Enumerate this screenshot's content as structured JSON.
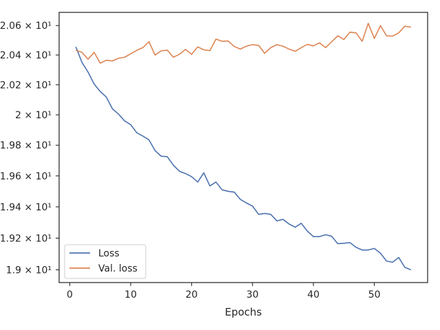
{
  "colors": {
    "loss": "#4c72b0",
    "val_loss": "#dd8452",
    "axes": "#262626",
    "background": "#ffffff"
  },
  "chart_data": {
    "type": "line",
    "title": "",
    "xlabel": "Epochs",
    "ylabel": "",
    "xlim": [
      -1.75,
      58.75
    ],
    "ylim": [
      18.92,
      20.69
    ],
    "yscale": "log",
    "grid": false,
    "legend_position": "lower-left",
    "x_ticks": [
      0,
      10,
      20,
      30,
      40,
      50
    ],
    "x_tick_labels": [
      "0",
      "10",
      "20",
      "30",
      "40",
      "50"
    ],
    "y_ticks": [
      19.0,
      19.2,
      19.4,
      19.6,
      19.8,
      20.0,
      20.2,
      20.4,
      20.6
    ],
    "y_tick_labels": [
      "1.9 × 10¹",
      "1.92 × 10¹",
      "1.94 × 10¹",
      "1.96 × 10¹",
      "1.98 × 10¹",
      "2 × 10¹",
      "2.02 × 10¹",
      "2.04 × 10¹",
      "2.06 × 10¹"
    ],
    "x": [
      1,
      2,
      3,
      4,
      5,
      6,
      7,
      8,
      9,
      10,
      11,
      12,
      13,
      14,
      15,
      16,
      17,
      18,
      19,
      20,
      21,
      22,
      23,
      24,
      25,
      26,
      27,
      28,
      29,
      30,
      31,
      32,
      33,
      34,
      35,
      36,
      37,
      38,
      39,
      40,
      41,
      42,
      43,
      44,
      45,
      46,
      47,
      48,
      49,
      50,
      51,
      52,
      53,
      54,
      55,
      56
    ],
    "series": [
      {
        "name": "Loss",
        "color": "#4c72b0",
        "values": [
          20.455,
          20.35,
          20.285,
          20.205,
          20.155,
          20.118,
          20.04,
          20.005,
          19.96,
          19.935,
          19.882,
          19.86,
          19.835,
          19.765,
          19.728,
          19.725,
          19.67,
          19.63,
          19.615,
          19.595,
          19.56,
          19.62,
          19.535,
          19.56,
          19.51,
          19.5,
          19.495,
          19.448,
          19.425,
          19.405,
          19.352,
          19.358,
          19.352,
          19.31,
          19.32,
          19.29,
          19.27,
          19.295,
          19.245,
          19.21,
          19.21,
          19.222,
          19.212,
          19.165,
          19.168,
          19.172,
          19.142,
          19.125,
          19.125,
          19.135,
          19.105,
          19.055,
          19.048,
          19.078,
          19.016,
          19.0
        ]
      },
      {
        "name": "Val. loss",
        "color": "#dd8452",
        "values": [
          20.432,
          20.418,
          20.372,
          20.418,
          20.345,
          20.365,
          20.36,
          20.378,
          20.385,
          20.408,
          20.432,
          20.45,
          20.49,
          20.4,
          20.428,
          20.433,
          20.385,
          20.405,
          20.438,
          20.405,
          20.455,
          20.435,
          20.43,
          20.508,
          20.493,
          20.495,
          20.458,
          20.44,
          20.46,
          20.47,
          20.465,
          20.412,
          20.45,
          20.47,
          20.46,
          20.44,
          20.425,
          20.45,
          20.472,
          20.462,
          20.483,
          20.45,
          20.49,
          20.53,
          20.505,
          20.555,
          20.55,
          20.493,
          20.615,
          20.512,
          20.6,
          20.53,
          20.528,
          20.55,
          20.595,
          20.59
        ]
      }
    ]
  }
}
